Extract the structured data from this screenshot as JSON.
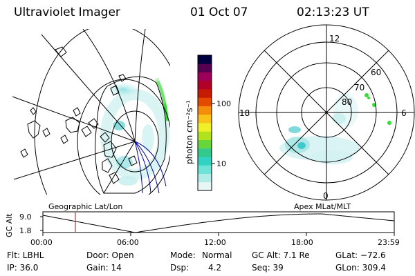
{
  "header": {
    "instrument": "Ultraviolet Imager",
    "date": "01 Oct 07",
    "time": "02:13:23 UT"
  },
  "colorbar": {
    "unit_label": "photon cm⁻²s⁻¹",
    "ticks": [
      {
        "label": "100",
        "value": 100
      },
      {
        "label": "10",
        "value": 10
      }
    ],
    "colors": [
      "#e8f6f6",
      "#b2ece8",
      "#6fe3da",
      "#33d3c4",
      "#33c98d",
      "#66d63a",
      "#b1e21e",
      "#f0f028",
      "#f8c218",
      "#f48d0c",
      "#e24b00",
      "#c51b00",
      "#b00028",
      "#9d0058",
      "#560052",
      "#000040"
    ]
  },
  "left_map": {
    "label": "Geographic Lat/Lon"
  },
  "right_map": {
    "label": "Apex MLat/MLT",
    "mlt_labels": {
      "top": "12",
      "bottom": "0",
      "left": "18",
      "right": "6"
    },
    "lat_labels": [
      "80",
      "70",
      "60"
    ]
  },
  "altitude_plot": {
    "ylabel": "GC Alt",
    "yticks": [
      "9.0",
      "1.8"
    ],
    "xticks": [
      "00:00",
      "06:00",
      "12:00",
      "18:00",
      "23:59"
    ],
    "current_time_hours": 2.22
  },
  "status": {
    "filter": "Flt: LBHL",
    "door": "Door: Open",
    "mode_label": "Mode:",
    "mode_value": "Normal",
    "gc_alt": "GC Alt: 7.1 Re",
    "glat": "GLat: −72.6",
    "ip": "IP: 36.0",
    "gain": "Gain: 14",
    "dsp_label": "Dsp:",
    "dsp_value": "4.2",
    "seq": "Seq: 39",
    "glon": "GLon: 309.4"
  },
  "colors": {
    "time_marker": "#d00000",
    "coastline": "#0000a0",
    "aurora_cyan": "#8fe0e0",
    "aurora_green": "#33dd33"
  }
}
